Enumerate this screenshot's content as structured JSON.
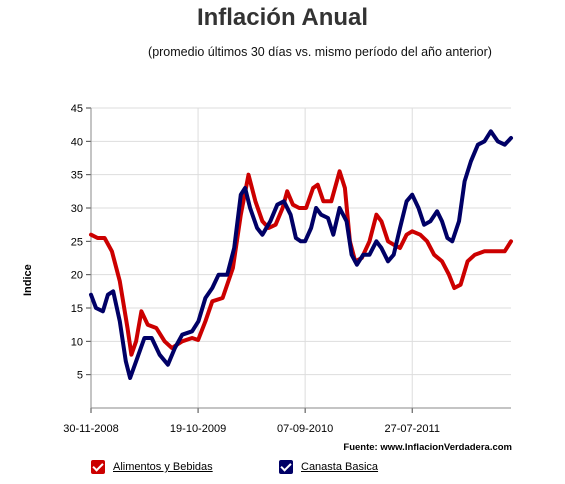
{
  "chart_data": {
    "type": "line",
    "title": "Inflación Anual",
    "subtitle": "(promedio últimos 30 días vs. mismo período del año anterior)",
    "ylabel": "Indice",
    "xlabel": "",
    "ylim": [
      0,
      45
    ],
    "yticks": [
      5,
      10,
      15,
      20,
      25,
      30,
      35,
      40,
      45
    ],
    "xticks": [
      "30-11-2008",
      "19-10-2009",
      "07-09-2010",
      "27-07-2011"
    ],
    "x_range": [
      "2008-11-30",
      "2012-05-20"
    ],
    "grid": true,
    "legend_position": "bottom",
    "source": "Fuente: www.InflacionVerdadera.com",
    "series": [
      {
        "name": "Alimentos y Bebidas",
        "color": "#cc0000",
        "points": [
          [
            "2008-11-30",
            26
          ],
          [
            "2008-12-20",
            25.5
          ],
          [
            "2009-01-10",
            25.5
          ],
          [
            "2009-02-01",
            23.5
          ],
          [
            "2009-02-25",
            19
          ],
          [
            "2009-03-20",
            12
          ],
          [
            "2009-04-01",
            8
          ],
          [
            "2009-04-15",
            10
          ],
          [
            "2009-05-01",
            14.5
          ],
          [
            "2009-05-20",
            12.5
          ],
          [
            "2009-06-15",
            12
          ],
          [
            "2009-07-10",
            10
          ],
          [
            "2009-08-01",
            9
          ],
          [
            "2009-09-01",
            10
          ],
          [
            "2009-10-01",
            10.5
          ],
          [
            "2009-10-19",
            10.2
          ],
          [
            "2009-11-10",
            13
          ],
          [
            "2009-12-01",
            16
          ],
          [
            "2010-01-01",
            16.5
          ],
          [
            "2010-02-01",
            21
          ],
          [
            "2010-02-25",
            29
          ],
          [
            "2010-03-20",
            35
          ],
          [
            "2010-04-10",
            31
          ],
          [
            "2010-05-01",
            28
          ],
          [
            "2010-05-20",
            27
          ],
          [
            "2010-06-10",
            27.5
          ],
          [
            "2010-07-01",
            30
          ],
          [
            "2010-07-15",
            32.5
          ],
          [
            "2010-08-01",
            30.5
          ],
          [
            "2010-08-20",
            30
          ],
          [
            "2010-09-10",
            30
          ],
          [
            "2010-10-01",
            33
          ],
          [
            "2010-10-15",
            33.5
          ],
          [
            "2010-11-01",
            31
          ],
          [
            "2010-11-25",
            31
          ],
          [
            "2010-12-20",
            35.5
          ],
          [
            "2011-01-05",
            33
          ],
          [
            "2011-01-20",
            25
          ],
          [
            "2011-02-05",
            22
          ],
          [
            "2011-02-25",
            22.5
          ],
          [
            "2011-03-20",
            25
          ],
          [
            "2011-04-10",
            29
          ],
          [
            "2011-04-25",
            28
          ],
          [
            "2011-05-15",
            25
          ],
          [
            "2011-06-01",
            24.5
          ],
          [
            "2011-06-20",
            24
          ],
          [
            "2011-07-10",
            26
          ],
          [
            "2011-07-27",
            26.5
          ],
          [
            "2011-08-20",
            26
          ],
          [
            "2011-09-10",
            25
          ],
          [
            "2011-10-01",
            23
          ],
          [
            "2011-10-25",
            22
          ],
          [
            "2011-11-15",
            20
          ],
          [
            "2011-12-01",
            18
          ],
          [
            "2011-12-20",
            18.5
          ],
          [
            "2012-01-10",
            22
          ],
          [
            "2012-02-01",
            23
          ],
          [
            "2012-03-01",
            23.5
          ],
          [
            "2012-04-01",
            23.5
          ],
          [
            "2012-05-01",
            23.5
          ],
          [
            "2012-05-20",
            25
          ]
        ]
      },
      {
        "name": "Canasta Basica",
        "color": "#000066",
        "points": [
          [
            "2008-11-30",
            17
          ],
          [
            "2008-12-15",
            15
          ],
          [
            "2009-01-05",
            14.5
          ],
          [
            "2009-01-20",
            17
          ],
          [
            "2009-02-05",
            17.5
          ],
          [
            "2009-02-25",
            13
          ],
          [
            "2009-03-15",
            7
          ],
          [
            "2009-03-28",
            4.5
          ],
          [
            "2009-04-15",
            7
          ],
          [
            "2009-05-10",
            10.5
          ],
          [
            "2009-06-01",
            10.5
          ],
          [
            "2009-06-25",
            8
          ],
          [
            "2009-07-20",
            6.5
          ],
          [
            "2009-08-10",
            9
          ],
          [
            "2009-09-01",
            11
          ],
          [
            "2009-10-01",
            11.5
          ],
          [
            "2009-10-20",
            13
          ],
          [
            "2009-11-10",
            16.5
          ],
          [
            "2009-12-01",
            18
          ],
          [
            "2009-12-20",
            20
          ],
          [
            "2010-01-15",
            20
          ],
          [
            "2010-02-05",
            24
          ],
          [
            "2010-02-25",
            32
          ],
          [
            "2010-03-10",
            33
          ],
          [
            "2010-03-25",
            30
          ],
          [
            "2010-04-15",
            27
          ],
          [
            "2010-05-01",
            26
          ],
          [
            "2010-05-25",
            28
          ],
          [
            "2010-06-15",
            30.5
          ],
          [
            "2010-07-05",
            31
          ],
          [
            "2010-07-25",
            29
          ],
          [
            "2010-08-10",
            25.5
          ],
          [
            "2010-08-25",
            25
          ],
          [
            "2010-09-07",
            25
          ],
          [
            "2010-09-25",
            27
          ],
          [
            "2010-10-10",
            30
          ],
          [
            "2010-10-25",
            29
          ],
          [
            "2010-11-15",
            28.5
          ],
          [
            "2010-12-01",
            26
          ],
          [
            "2010-12-20",
            30
          ],
          [
            "2011-01-10",
            28
          ],
          [
            "2011-01-25",
            23
          ],
          [
            "2011-02-10",
            21.5
          ],
          [
            "2011-03-01",
            23
          ],
          [
            "2011-03-20",
            23
          ],
          [
            "2011-04-10",
            25
          ],
          [
            "2011-04-25",
            24
          ],
          [
            "2011-05-15",
            22
          ],
          [
            "2011-06-01",
            23
          ],
          [
            "2011-06-20",
            27
          ],
          [
            "2011-07-10",
            31
          ],
          [
            "2011-07-27",
            32
          ],
          [
            "2011-08-15",
            30
          ],
          [
            "2011-09-01",
            27.5
          ],
          [
            "2011-09-20",
            28
          ],
          [
            "2011-10-10",
            29.5
          ],
          [
            "2011-10-25",
            28
          ],
          [
            "2011-11-10",
            25.5
          ],
          [
            "2011-11-25",
            25
          ],
          [
            "2011-12-15",
            28
          ],
          [
            "2012-01-01",
            34
          ],
          [
            "2012-01-20",
            37
          ],
          [
            "2012-02-10",
            39.5
          ],
          [
            "2012-03-01",
            40
          ],
          [
            "2012-03-20",
            41.5
          ],
          [
            "2012-04-10",
            40
          ],
          [
            "2012-05-01",
            39.5
          ],
          [
            "2012-05-20",
            40.5
          ]
        ]
      }
    ]
  }
}
